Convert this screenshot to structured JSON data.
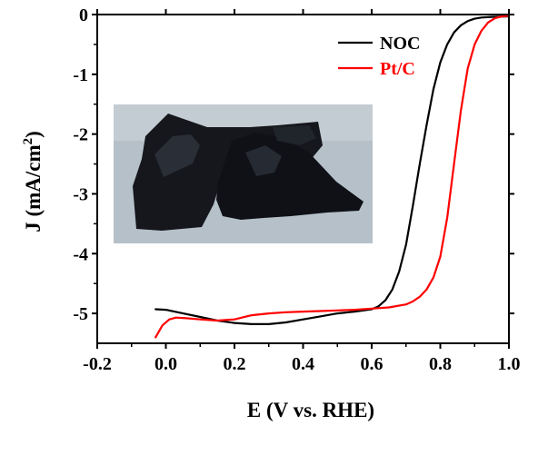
{
  "chart_data": {
    "type": "line",
    "xlabel": "E (V vs. RHE)",
    "ylabel_main": "J (mA/cm",
    "ylabel_sup": "2",
    "ylabel_close": ")",
    "xlim": [
      -0.2,
      1.0
    ],
    "ylim": [
      -5.5,
      0
    ],
    "x_ticks": [
      {
        "value": -0.2,
        "label": "-0.2"
      },
      {
        "value": 0.0,
        "label": "0.0"
      },
      {
        "value": 0.2,
        "label": "0.2"
      },
      {
        "value": 0.4,
        "label": "0.4"
      },
      {
        "value": 0.6,
        "label": "0.6"
      },
      {
        "value": 0.8,
        "label": "0.8"
      },
      {
        "value": 1.0,
        "label": "1.0"
      }
    ],
    "y_ticks": [
      {
        "value": 0,
        "label": "0"
      },
      {
        "value": -1,
        "label": "-1"
      },
      {
        "value": -2,
        "label": "-2"
      },
      {
        "value": -3,
        "label": "-3"
      },
      {
        "value": -4,
        "label": "-4"
      },
      {
        "value": -5,
        "label": "-5"
      }
    ],
    "legend_position": "top-right",
    "grid": false,
    "series": [
      {
        "name": "NOC",
        "color": "#000000",
        "x": [
          -0.03,
          0.0,
          0.05,
          0.1,
          0.15,
          0.2,
          0.25,
          0.3,
          0.35,
          0.4,
          0.45,
          0.5,
          0.55,
          0.6,
          0.62,
          0.64,
          0.66,
          0.68,
          0.7,
          0.72,
          0.74,
          0.76,
          0.78,
          0.8,
          0.82,
          0.84,
          0.86,
          0.88,
          0.9,
          0.92,
          0.95,
          1.0
        ],
        "y": [
          -4.93,
          -4.94,
          -5.0,
          -5.06,
          -5.12,
          -5.16,
          -5.18,
          -5.18,
          -5.15,
          -5.1,
          -5.05,
          -5.0,
          -4.97,
          -4.93,
          -4.88,
          -4.78,
          -4.6,
          -4.3,
          -3.85,
          -3.2,
          -2.5,
          -1.85,
          -1.25,
          -0.8,
          -0.5,
          -0.3,
          -0.18,
          -0.11,
          -0.07,
          -0.05,
          -0.04,
          -0.03
        ]
      },
      {
        "name": "Pt/C",
        "color": "#ff0000",
        "x": [
          -0.03,
          -0.01,
          0.01,
          0.03,
          0.06,
          0.1,
          0.15,
          0.2,
          0.25,
          0.3,
          0.35,
          0.4,
          0.45,
          0.5,
          0.55,
          0.6,
          0.65,
          0.7,
          0.72,
          0.74,
          0.76,
          0.78,
          0.8,
          0.82,
          0.84,
          0.86,
          0.88,
          0.9,
          0.92,
          0.94,
          0.96,
          0.98,
          1.0
        ],
        "y": [
          -5.4,
          -5.2,
          -5.1,
          -5.07,
          -5.08,
          -5.1,
          -5.12,
          -5.1,
          -5.03,
          -5.0,
          -4.98,
          -4.97,
          -4.96,
          -4.95,
          -4.94,
          -4.92,
          -4.9,
          -4.85,
          -4.8,
          -4.72,
          -4.6,
          -4.4,
          -4.05,
          -3.4,
          -2.5,
          -1.6,
          -0.9,
          -0.5,
          -0.27,
          -0.13,
          -0.06,
          -0.03,
          -0.02
        ]
      }
    ]
  }
}
